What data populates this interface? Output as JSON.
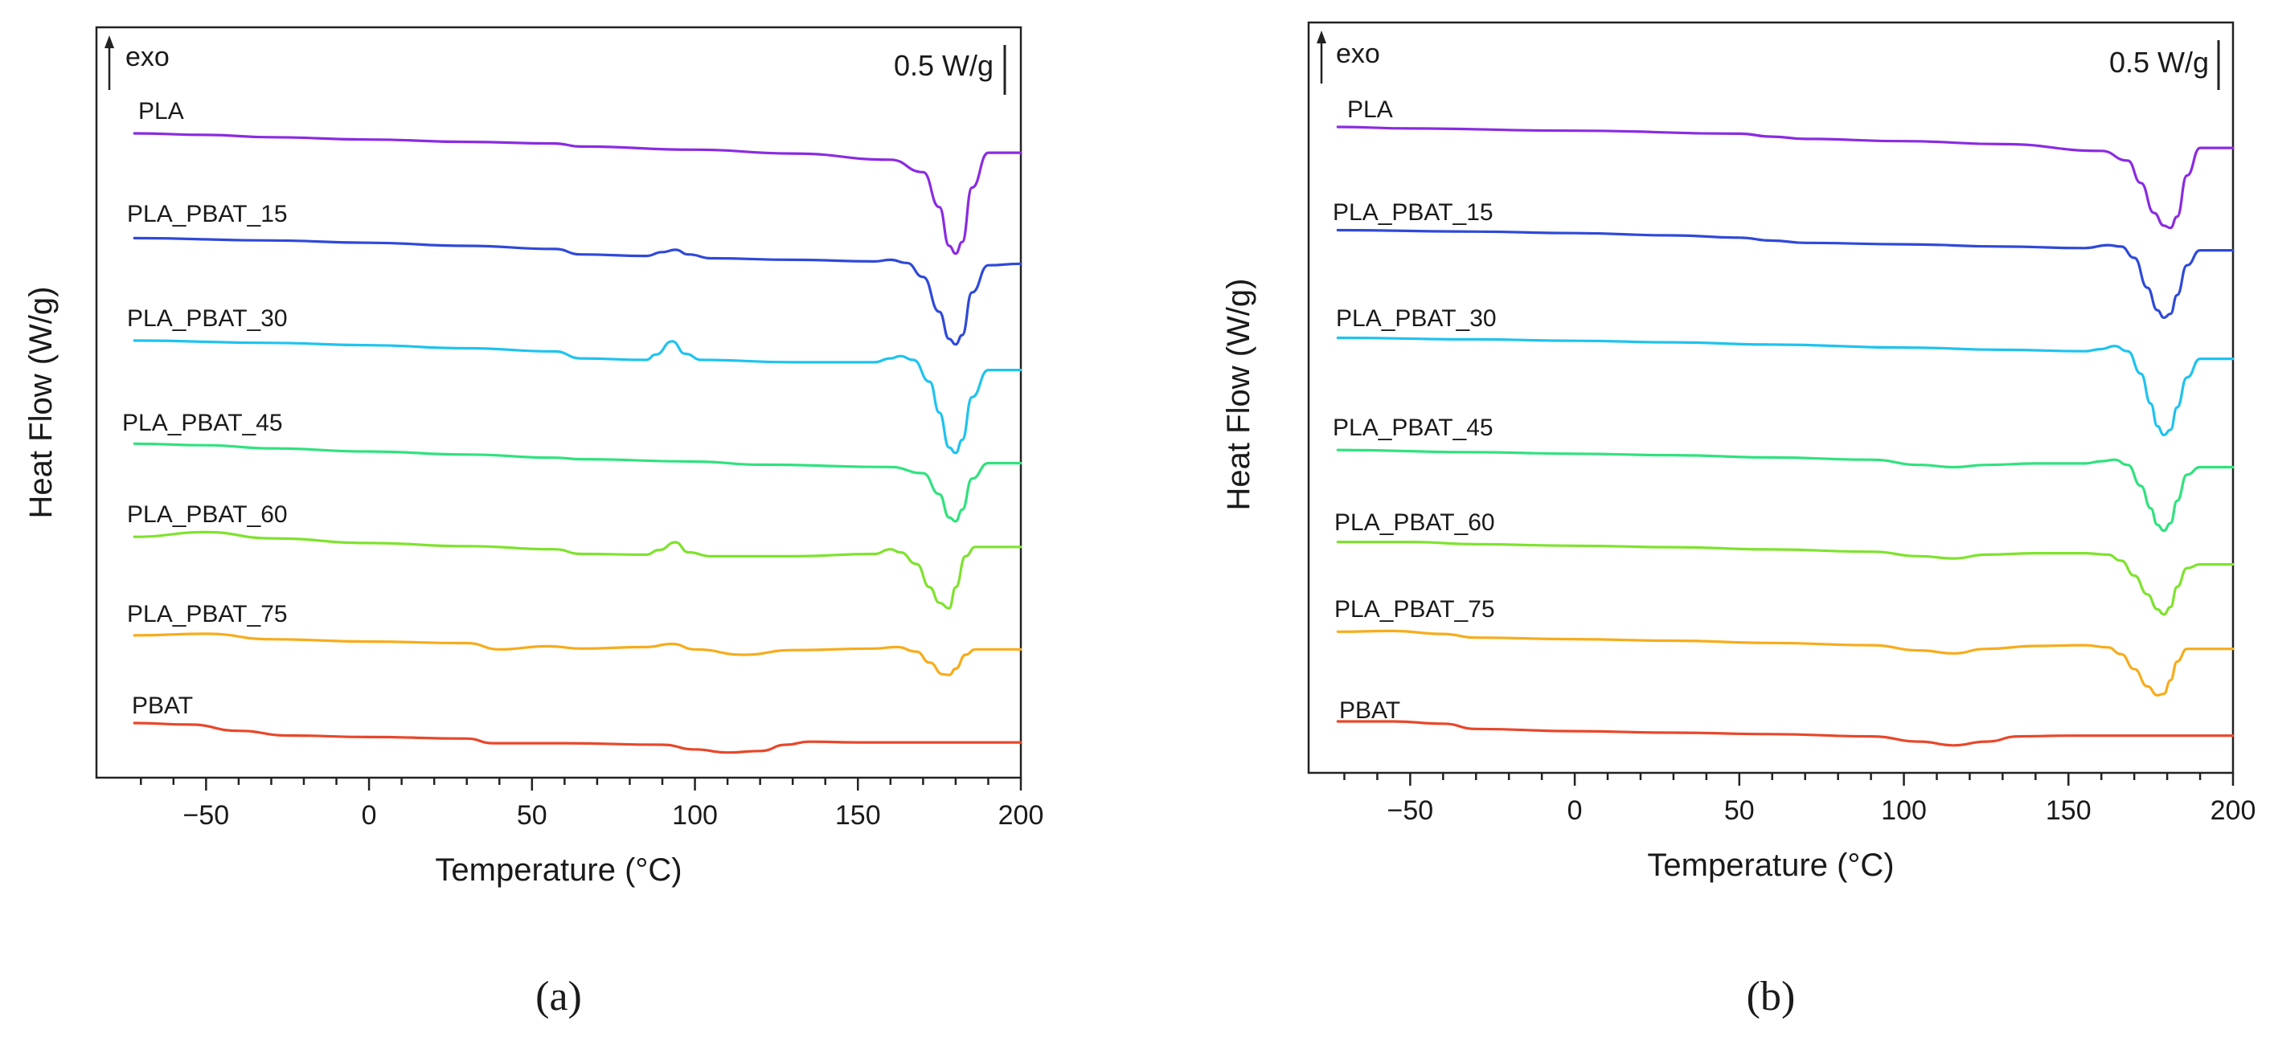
{
  "chart_data": [
    {
      "type": "line",
      "panel_label": "(a)",
      "xlabel": "Temperature (°C)",
      "ylabel": "Heat Flow (W/g)",
      "xlim": [
        -75,
        200
      ],
      "xticks": [
        -50,
        0,
        50,
        100,
        150,
        200
      ],
      "xtick_labels": [
        "−50",
        "0",
        "50",
        "100",
        "150",
        "200"
      ],
      "exo_label": "exo",
      "scale_label": "0.5 W/g",
      "y_units": "W/g, offset stacked (arbitrary zero)",
      "series": [
        {
          "name": "PLA",
          "color": "#8a2be2",
          "offset": 0.0,
          "x": [
            -72,
            -50,
            -30,
            0,
            30,
            57,
            65,
            100,
            130,
            160,
            170,
            175,
            178,
            180,
            182,
            185,
            190,
            200
          ],
          "y": [
            0.0,
            -0.02,
            -0.05,
            -0.08,
            -0.11,
            -0.13,
            -0.17,
            -0.21,
            -0.26,
            -0.34,
            -0.5,
            -0.95,
            -1.45,
            -1.55,
            -1.4,
            -0.7,
            -0.25,
            -0.25
          ]
        },
        {
          "name": "PLA_PBAT_15",
          "color": "#2f49d9",
          "offset": 0.0,
          "x": [
            -72,
            -30,
            0,
            30,
            57,
            65,
            85,
            90,
            94,
            98,
            105,
            130,
            155,
            160,
            165,
            170,
            175,
            178,
            180,
            182,
            185,
            190,
            200
          ],
          "y": [
            -1.35,
            -1.38,
            -1.41,
            -1.45,
            -1.49,
            -1.56,
            -1.58,
            -1.53,
            -1.5,
            -1.56,
            -1.61,
            -1.63,
            -1.65,
            -1.63,
            -1.67,
            -1.85,
            -2.3,
            -2.65,
            -2.72,
            -2.6,
            -2.05,
            -1.7,
            -1.68
          ]
        },
        {
          "name": "PLA_PBAT_30",
          "color": "#1ec3ef",
          "offset": 0.0,
          "x": [
            -72,
            -30,
            0,
            30,
            57,
            65,
            85,
            88,
            93,
            97,
            102,
            130,
            155,
            160,
            163,
            167,
            172,
            175,
            178,
            180,
            182,
            185,
            190,
            200
          ],
          "y": [
            -2.67,
            -2.7,
            -2.73,
            -2.77,
            -2.81,
            -2.9,
            -2.92,
            -2.85,
            -2.68,
            -2.84,
            -2.92,
            -2.95,
            -2.95,
            -2.9,
            -2.87,
            -2.92,
            -3.2,
            -3.6,
            -4.05,
            -4.12,
            -3.95,
            -3.4,
            -3.05,
            -3.05
          ]
        },
        {
          "name": "PLA_PBAT_45",
          "color": "#2fe27e",
          "offset": 0.0,
          "x": [
            -72,
            -50,
            -30,
            0,
            30,
            57,
            65,
            100,
            120,
            160,
            170,
            175,
            178,
            180,
            182,
            185,
            190,
            200
          ],
          "y": [
            -4.0,
            -4.02,
            -4.06,
            -4.1,
            -4.14,
            -4.18,
            -4.2,
            -4.23,
            -4.27,
            -4.3,
            -4.38,
            -4.65,
            -4.95,
            -5.0,
            -4.85,
            -4.45,
            -4.25,
            -4.25
          ]
        },
        {
          "name": "PLA_PBAT_60",
          "color": "#7ee32c",
          "offset": 0.0,
          "x": [
            -72,
            -50,
            -30,
            0,
            30,
            57,
            65,
            85,
            89,
            94,
            98,
            105,
            130,
            155,
            160,
            163,
            168,
            172,
            175,
            178,
            180,
            183,
            186,
            190,
            200
          ],
          "y": [
            -5.2,
            -5.14,
            -5.22,
            -5.28,
            -5.32,
            -5.36,
            -5.42,
            -5.43,
            -5.37,
            -5.27,
            -5.4,
            -5.45,
            -5.45,
            -5.42,
            -5.36,
            -5.4,
            -5.55,
            -5.85,
            -6.05,
            -6.12,
            -5.85,
            -5.45,
            -5.33,
            -5.33,
            -5.33
          ]
        },
        {
          "name": "PLA_PBAT_75",
          "color": "#f7ac1a",
          "offset": 0.0,
          "x": [
            -72,
            -50,
            -30,
            0,
            30,
            40,
            55,
            65,
            85,
            93,
            100,
            115,
            130,
            155,
            162,
            168,
            172,
            176,
            178,
            180,
            183,
            186,
            190,
            200
          ],
          "y": [
            -6.47,
            -6.45,
            -6.52,
            -6.55,
            -6.57,
            -6.65,
            -6.61,
            -6.64,
            -6.62,
            -6.58,
            -6.65,
            -6.72,
            -6.66,
            -6.64,
            -6.62,
            -6.68,
            -6.82,
            -6.97,
            -6.98,
            -6.9,
            -6.72,
            -6.65,
            -6.65,
            -6.65
          ]
        },
        {
          "name": "PBAT",
          "color": "#e8472a",
          "offset": 0.0,
          "x": [
            -72,
            -55,
            -40,
            -25,
            0,
            30,
            38,
            60,
            90,
            100,
            110,
            120,
            128,
            135,
            150,
            200
          ],
          "y": [
            -7.6,
            -7.62,
            -7.7,
            -7.76,
            -7.78,
            -7.8,
            -7.86,
            -7.86,
            -7.88,
            -7.94,
            -7.98,
            -7.96,
            -7.88,
            -7.84,
            -7.85,
            -7.85
          ]
        }
      ]
    },
    {
      "type": "line",
      "panel_label": "(b)",
      "xlabel": "Temperature (°C)",
      "ylabel": "Heat Flow (W/g)",
      "xlim": [
        -75,
        200
      ],
      "xticks": [
        -50,
        0,
        50,
        100,
        150,
        200
      ],
      "xtick_labels": [
        "−50",
        "0",
        "50",
        "100",
        "150",
        "200"
      ],
      "exo_label": "exo",
      "scale_label": "0.5 W/g",
      "y_units": "W/g, offset stacked (arbitrary zero)",
      "series": [
        {
          "name": "PLA",
          "color": "#8a2be2",
          "offset": 0.0,
          "x": [
            -72,
            -50,
            0,
            50,
            60,
            70,
            100,
            130,
            160,
            168,
            172,
            176,
            179,
            181,
            183,
            186,
            190,
            200
          ],
          "y": [
            0.0,
            -0.02,
            -0.05,
            -0.09,
            -0.13,
            -0.16,
            -0.19,
            -0.23,
            -0.32,
            -0.45,
            -0.75,
            -1.15,
            -1.32,
            -1.35,
            -1.2,
            -0.65,
            -0.28,
            -0.28
          ]
        },
        {
          "name": "PLA_PBAT_15",
          "color": "#2f49d9",
          "offset": 0.0,
          "x": [
            -72,
            -30,
            0,
            30,
            50,
            60,
            70,
            100,
            130,
            155,
            162,
            166,
            170,
            174,
            177,
            179,
            181,
            183,
            186,
            190,
            200
          ],
          "y": [
            -1.38,
            -1.4,
            -1.42,
            -1.45,
            -1.48,
            -1.52,
            -1.55,
            -1.57,
            -1.6,
            -1.62,
            -1.58,
            -1.6,
            -1.75,
            -2.15,
            -2.45,
            -2.55,
            -2.5,
            -2.25,
            -1.85,
            -1.65,
            -1.65
          ]
        },
        {
          "name": "PLA_PBAT_30",
          "color": "#1ec3ef",
          "offset": 0.0,
          "x": [
            -72,
            -30,
            0,
            30,
            60,
            100,
            130,
            155,
            160,
            164,
            168,
            172,
            175,
            177,
            179,
            181,
            183,
            186,
            190,
            200
          ],
          "y": [
            -2.82,
            -2.84,
            -2.86,
            -2.88,
            -2.91,
            -2.95,
            -2.98,
            -3.0,
            -2.97,
            -2.93,
            -3.0,
            -3.3,
            -3.7,
            -4.0,
            -4.12,
            -4.05,
            -3.75,
            -3.35,
            -3.1,
            -3.1
          ]
        },
        {
          "name": "PLA_PBAT_45",
          "color": "#2fe27e",
          "offset": 0.0,
          "x": [
            -72,
            -30,
            0,
            30,
            60,
            90,
            105,
            115,
            125,
            140,
            155,
            160,
            164,
            168,
            172,
            175,
            177,
            179,
            181,
            183,
            186,
            190,
            200
          ],
          "y": [
            -4.32,
            -4.35,
            -4.37,
            -4.39,
            -4.42,
            -4.45,
            -4.52,
            -4.55,
            -4.52,
            -4.5,
            -4.5,
            -4.47,
            -4.45,
            -4.52,
            -4.8,
            -5.1,
            -5.32,
            -5.4,
            -5.3,
            -5.0,
            -4.65,
            -4.55,
            -4.55
          ]
        },
        {
          "name": "PLA_PBAT_60",
          "color": "#7ee32c",
          "offset": 0.0,
          "x": [
            -72,
            -50,
            -30,
            0,
            30,
            60,
            90,
            105,
            115,
            125,
            140,
            155,
            162,
            166,
            170,
            174,
            177,
            179,
            181,
            183,
            186,
            190,
            200
          ],
          "y": [
            -5.55,
            -5.55,
            -5.58,
            -5.6,
            -5.62,
            -5.65,
            -5.68,
            -5.74,
            -5.77,
            -5.72,
            -5.7,
            -5.7,
            -5.72,
            -5.8,
            -6.0,
            -6.25,
            -6.45,
            -6.52,
            -6.42,
            -6.15,
            -5.9,
            -5.85,
            -5.85
          ]
        },
        {
          "name": "PLA_PBAT_75",
          "color": "#f7ac1a",
          "offset": 0.0,
          "x": [
            -72,
            -55,
            -40,
            -30,
            0,
            30,
            60,
            90,
            105,
            115,
            125,
            140,
            155,
            162,
            166,
            170,
            174,
            177,
            179,
            181,
            183,
            186,
            190,
            200
          ],
          "y": [
            -6.75,
            -6.74,
            -6.78,
            -6.83,
            -6.85,
            -6.87,
            -6.9,
            -6.93,
            -7.0,
            -7.04,
            -6.98,
            -6.94,
            -6.93,
            -6.96,
            -7.05,
            -7.25,
            -7.48,
            -7.6,
            -7.58,
            -7.4,
            -7.15,
            -6.98,
            -6.98,
            -6.98
          ]
        },
        {
          "name": "PBAT",
          "color": "#e8472a",
          "offset": 0.0,
          "x": [
            -72,
            -55,
            -40,
            -30,
            0,
            30,
            60,
            90,
            105,
            115,
            125,
            135,
            150,
            200
          ],
          "y": [
            -7.95,
            -7.95,
            -7.98,
            -8.05,
            -8.08,
            -8.1,
            -8.12,
            -8.15,
            -8.22,
            -8.27,
            -8.22,
            -8.15,
            -8.14,
            -8.14
          ]
        }
      ]
    }
  ]
}
